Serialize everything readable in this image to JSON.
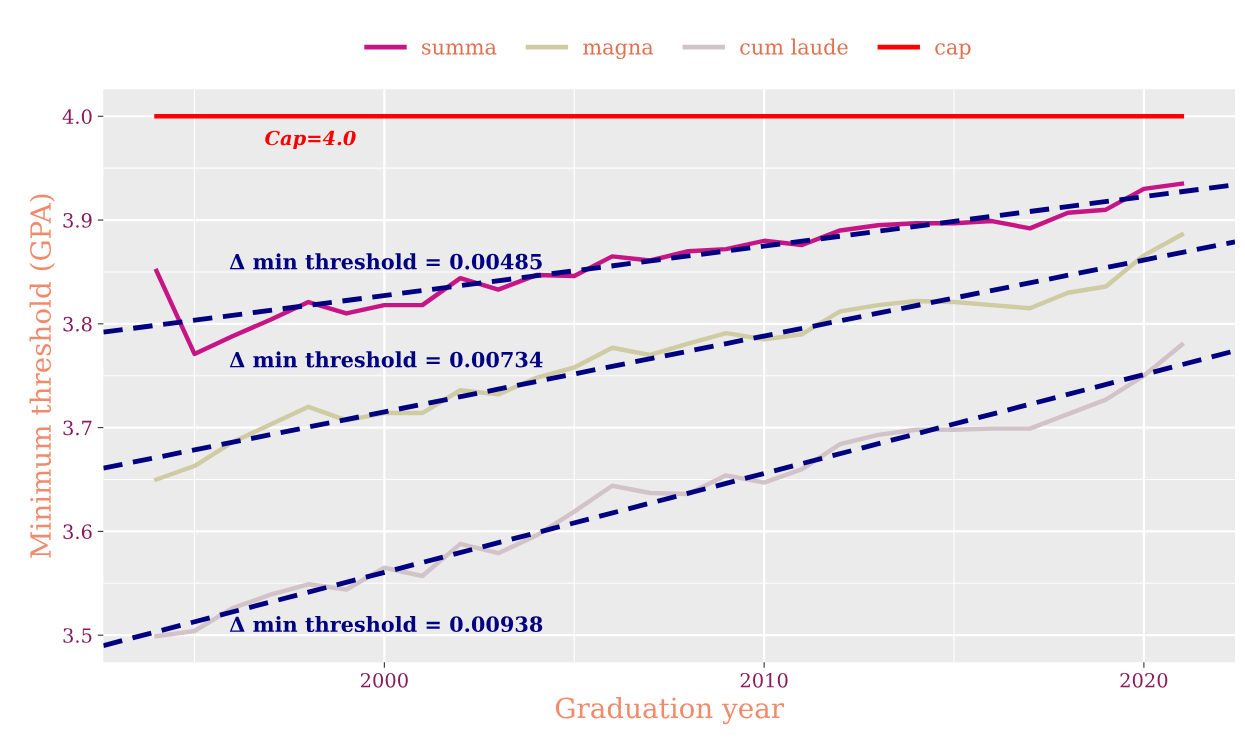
{
  "chart_data": {
    "type": "line",
    "xlabel": "Graduation year",
    "ylabel": "Minimum threshold (GPA)",
    "x": [
      1994,
      1995,
      1996,
      1997,
      1998,
      1999,
      2000,
      2001,
      2002,
      2003,
      2004,
      2005,
      2006,
      2007,
      2008,
      2009,
      2010,
      2011,
      2012,
      2013,
      2014,
      2015,
      2016,
      2017,
      2018,
      2019,
      2020,
      2021
    ],
    "series": [
      {
        "name": "summa",
        "color": "#c71585",
        "values": [
          3.851,
          3.771,
          3.788,
          3.804,
          3.821,
          3.81,
          3.818,
          3.818,
          3.844,
          3.833,
          3.847,
          3.846,
          3.865,
          3.861,
          3.87,
          3.872,
          3.88,
          3.876,
          3.89,
          3.895,
          3.897,
          3.897,
          3.899,
          3.892,
          3.907,
          3.91,
          3.93,
          3.935
        ]
      },
      {
        "name": "magna",
        "color": "#cfcba3",
        "values": [
          3.65,
          3.663,
          3.686,
          3.703,
          3.72,
          3.707,
          3.714,
          3.714,
          3.736,
          3.732,
          3.748,
          3.758,
          3.777,
          3.77,
          3.781,
          3.791,
          3.785,
          3.79,
          3.812,
          3.818,
          3.822,
          3.821,
          3.818,
          3.815,
          3.83,
          3.836,
          3.866,
          3.886
        ]
      },
      {
        "name": "cum laude",
        "color": "#d2c3c9",
        "values": [
          3.499,
          3.504,
          3.526,
          3.539,
          3.549,
          3.544,
          3.565,
          3.557,
          3.588,
          3.579,
          3.596,
          3.619,
          3.644,
          3.637,
          3.636,
          3.654,
          3.647,
          3.66,
          3.684,
          3.693,
          3.698,
          3.698,
          3.699,
          3.699,
          3.713,
          3.727,
          3.75,
          3.78
        ]
      },
      {
        "name": "cap",
        "color": "#ff0000",
        "x": [
          1994,
          2021
        ],
        "values": [
          4.0,
          4.0
        ]
      },
      {
        "color": "#000080",
        "line_style": "dashed",
        "x": [
          1992.6,
          2022.4
        ],
        "values": [
          3.792,
          3.934
        ]
      },
      {
        "color": "#000080",
        "line_style": "dashed",
        "x": [
          1992.6,
          2022.4
        ],
        "values": [
          3.661,
          3.879
        ]
      },
      {
        "color": "#000080",
        "line_style": "dashed",
        "x": [
          1992.6,
          2022.4
        ],
        "values": [
          3.49,
          3.774
        ]
      }
    ],
    "annotations": [
      "Cap=4.0",
      "Δ min threshold = 0.00485",
      "Δ min threshold = 0.00734",
      "Δ min threshold = 0.00938"
    ],
    "xlim": [
      1992.6,
      2022.4
    ],
    "ylim": [
      3.474,
      4.026
    ],
    "xticks": [
      2000,
      2010,
      2020
    ],
    "yticks": [
      3.5,
      3.6,
      3.7,
      3.8,
      3.9,
      {
        "value": 4.0,
        "label": "4.0"
      }
    ],
    "grid": true,
    "legend": "top",
    "marker": "none",
    "line_style": "solid"
  }
}
